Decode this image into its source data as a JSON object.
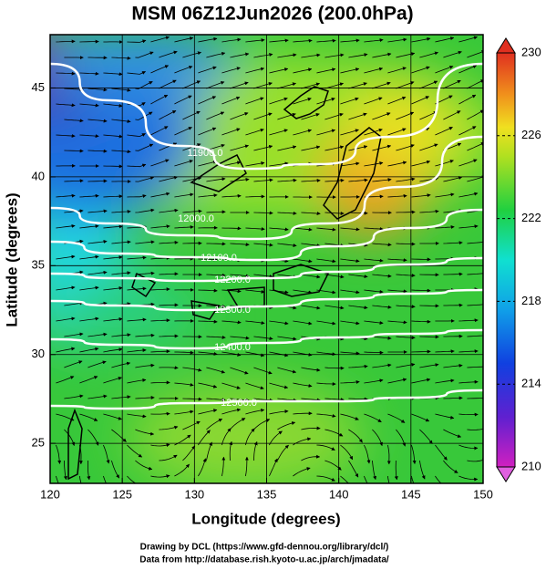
{
  "title": "MSM 06Z12Jun2026 (200.0hPa)",
  "x_label": "Longitude (degrees)",
  "y_label": "Latitude  (degrees)",
  "xlim": [
    120,
    150
  ],
  "xticks": [
    120,
    125,
    130,
    135,
    140,
    145,
    150
  ],
  "ylim": [
    22.75,
    48
  ],
  "yticks": [
    25,
    30,
    35,
    40,
    45
  ],
  "grid": true,
  "colorbar": {
    "lim": [
      210,
      230
    ],
    "ticks": [
      210,
      214,
      218,
      222,
      226,
      230
    ]
  },
  "contours": [
    {
      "value": 11900,
      "label": "11900.0"
    },
    {
      "value": 12000,
      "label": "12000.0"
    },
    {
      "value": 12100,
      "label": "12100.0"
    },
    {
      "value": 12200,
      "label": "12200.0"
    },
    {
      "value": 12300,
      "label": "12300.0"
    },
    {
      "value": 12400,
      "label": "12400.0"
    },
    {
      "value": 12500,
      "label": "12500.0"
    }
  ],
  "footer": [
    "Drawing by DCL (https://www.gfd-dennou.org/library/dcl/)",
    "Data from http://database.rish.kyoto-u.ac.jp/arch/jmadata/"
  ]
}
